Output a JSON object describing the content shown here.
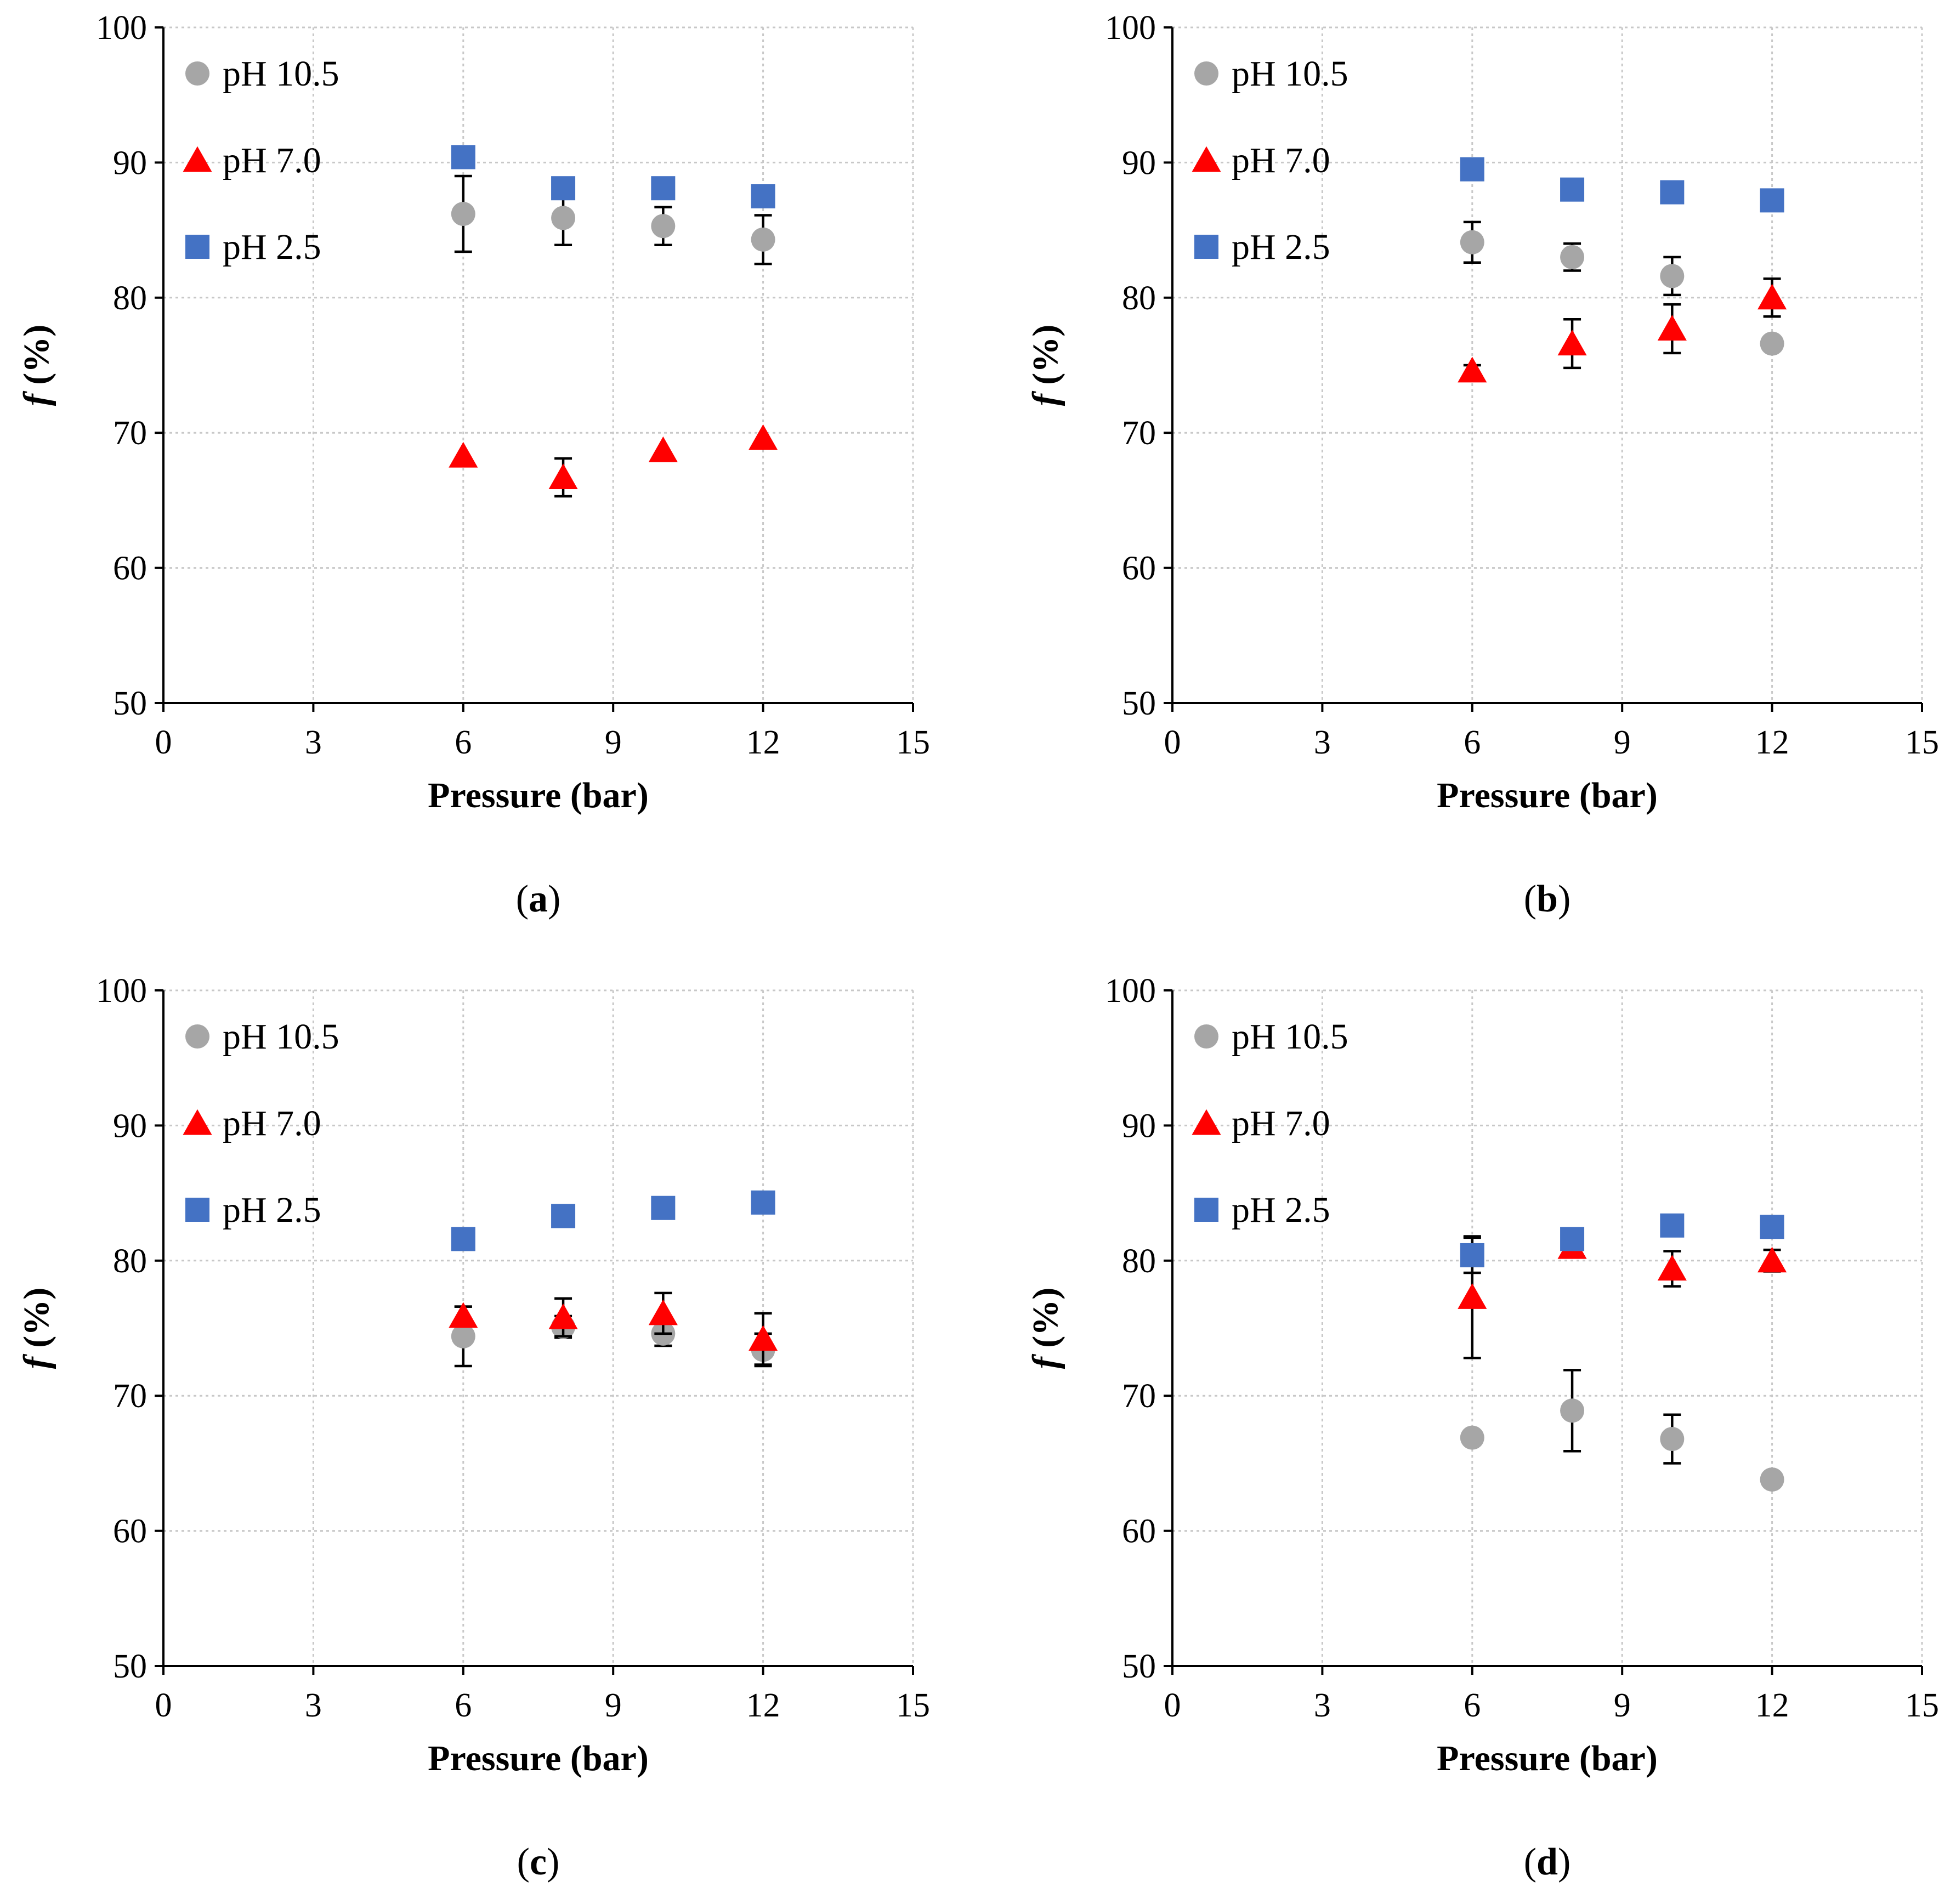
{
  "colors": {
    "ph105": "#a6a6a6",
    "ph70": "#ff0000",
    "ph25": "#4472c4"
  },
  "chart_data": [
    {
      "type": "scatter",
      "panel": "(a)",
      "panel_letter": "a",
      "xlabel": "Pressure (bar)",
      "ylabel_italic": "f",
      "ylabel_rest": " (%)",
      "xlim": [
        0,
        15
      ],
      "ylim": [
        50,
        100
      ],
      "xticks": [
        "0",
        "3",
        "6",
        "9",
        "12",
        "15"
      ],
      "yticks": [
        "50",
        "60",
        "70",
        "80",
        "90",
        "100"
      ],
      "grid": true,
      "legend_position": "top-left",
      "series": [
        {
          "name": "pH 10.5",
          "marker": "circle",
          "color": "#a6a6a6",
          "points": [
            [
              6,
              86.2,
              2.8
            ],
            [
              8,
              85.9,
              2.0
            ],
            [
              10,
              85.3,
              1.4
            ],
            [
              12,
              84.3,
              1.8
            ]
          ]
        },
        {
          "name": "pH 7.0",
          "marker": "triangle",
          "color": "#ff0000",
          "points": [
            [
              6,
              68.3,
              0.0
            ],
            [
              8,
              66.7,
              1.4
            ],
            [
              10,
              68.7,
              0.0
            ],
            [
              12,
              69.6,
              0.0
            ]
          ]
        },
        {
          "name": "pH 2.5",
          "marker": "square",
          "color": "#4472c4",
          "points": [
            [
              6,
              90.4,
              0.0
            ],
            [
              8,
              88.1,
              0.0
            ],
            [
              10,
              88.1,
              0.0
            ],
            [
              12,
              87.5,
              0.0
            ]
          ]
        }
      ]
    },
    {
      "type": "scatter",
      "panel": "(b)",
      "panel_letter": "b",
      "xlabel": "Pressure (bar)",
      "ylabel_italic": "f",
      "ylabel_rest": " (%)",
      "xlim": [
        0,
        15
      ],
      "ylim": [
        50,
        100
      ],
      "xticks": [
        "0",
        "3",
        "6",
        "9",
        "12",
        "15"
      ],
      "yticks": [
        "50",
        "60",
        "70",
        "80",
        "90",
        "100"
      ],
      "grid": true,
      "legend_position": "top-left",
      "series": [
        {
          "name": "pH 10.5",
          "marker": "circle",
          "color": "#a6a6a6",
          "points": [
            [
              6,
              84.1,
              1.5
            ],
            [
              8,
              83.0,
              1.0
            ],
            [
              10,
              81.6,
              1.4
            ],
            [
              12,
              76.6,
              0.0
            ]
          ]
        },
        {
          "name": "pH 7.0",
          "marker": "triangle",
          "color": "#ff0000",
          "points": [
            [
              6,
              74.6,
              0.4
            ],
            [
              8,
              76.6,
              1.8
            ],
            [
              10,
              77.7,
              1.8
            ],
            [
              12,
              80.0,
              1.4
            ]
          ]
        },
        {
          "name": "pH 2.5",
          "marker": "square",
          "color": "#4472c4",
          "points": [
            [
              6,
              89.5,
              0.0
            ],
            [
              8,
              88.0,
              0.0
            ],
            [
              10,
              87.8,
              0.0
            ],
            [
              12,
              87.2,
              0.0
            ]
          ]
        }
      ]
    },
    {
      "type": "scatter",
      "panel": "(c)",
      "panel_letter": "c",
      "xlabel": "Pressure (bar)",
      "ylabel_italic": "f",
      "ylabel_rest": " (%)",
      "xlim": [
        0,
        15
      ],
      "ylim": [
        50,
        100
      ],
      "xticks": [
        "0",
        "3",
        "6",
        "9",
        "12",
        "15"
      ],
      "yticks": [
        "50",
        "60",
        "70",
        "80",
        "90",
        "100"
      ],
      "grid": true,
      "legend_position": "top-left",
      "series": [
        {
          "name": "pH 10.5",
          "marker": "circle",
          "color": "#a6a6a6",
          "points": [
            [
              6,
              74.4,
              2.2
            ],
            [
              8,
              75.1,
              0.8
            ],
            [
              10,
              74.6,
              0.9
            ],
            [
              12,
              73.4,
              1.2
            ]
          ]
        },
        {
          "name": "pH 7.0",
          "marker": "triangle",
          "color": "#ff0000",
          "points": [
            [
              6,
              75.9,
              0.7
            ],
            [
              8,
              75.8,
              1.4
            ],
            [
              10,
              76.1,
              1.5
            ],
            [
              12,
              74.2,
              1.9
            ]
          ]
        },
        {
          "name": "pH 2.5",
          "marker": "square",
          "color": "#4472c4",
          "points": [
            [
              6,
              81.6,
              0.0
            ],
            [
              8,
              83.3,
              0.0
            ],
            [
              10,
              83.9,
              0.0
            ],
            [
              12,
              84.3,
              0.0
            ]
          ]
        }
      ]
    },
    {
      "type": "scatter",
      "panel": "(d)",
      "panel_letter": "d",
      "xlabel": "Pressure (bar)",
      "ylabel_italic": "f",
      "ylabel_rest": " (%)",
      "xlim": [
        0,
        15
      ],
      "ylim": [
        50,
        100
      ],
      "xticks": [
        "0",
        "3",
        "6",
        "9",
        "12",
        "15"
      ],
      "yticks": [
        "50",
        "60",
        "70",
        "80",
        "90",
        "100"
      ],
      "grid": true,
      "legend_position": "top-left",
      "series": [
        {
          "name": "pH 10.5",
          "marker": "circle",
          "color": "#a6a6a6",
          "points": [
            [
              6,
              66.9,
              0.0
            ],
            [
              8,
              68.9,
              3.0
            ],
            [
              10,
              66.8,
              1.8
            ],
            [
              12,
              63.8,
              0.0
            ]
          ]
        },
        {
          "name": "pH 7.0",
          "marker": "triangle",
          "color": "#ff0000",
          "points": [
            [
              6,
              77.3,
              4.5
            ],
            [
              8,
              81.0,
              0.7
            ],
            [
              10,
              79.4,
              1.3
            ],
            [
              12,
              80.0,
              0.8
            ]
          ]
        },
        {
          "name": "pH 2.5",
          "marker": "square",
          "color": "#4472c4",
          "points": [
            [
              6,
              80.4,
              1.3
            ],
            [
              8,
              81.6,
              0.0
            ],
            [
              10,
              82.6,
              0.0
            ],
            [
              12,
              82.5,
              0.0
            ]
          ]
        }
      ]
    }
  ]
}
